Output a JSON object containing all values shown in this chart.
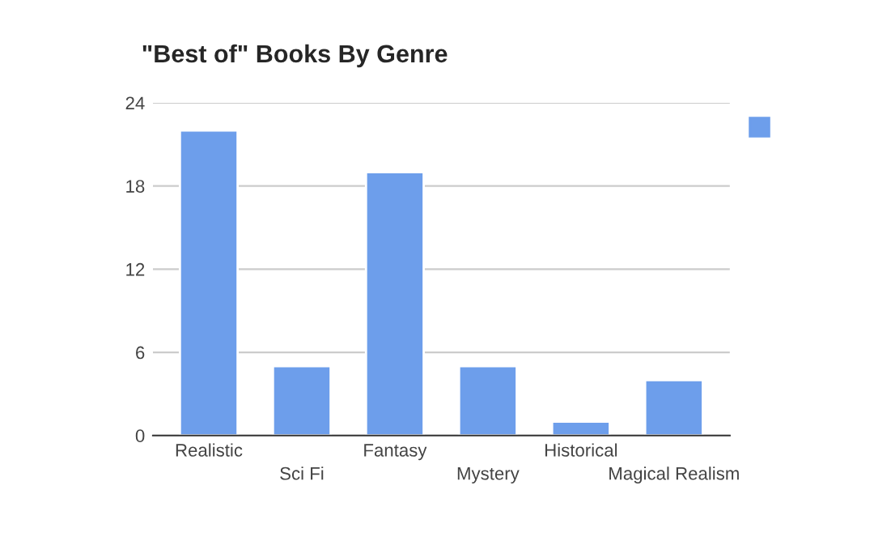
{
  "chart_data": {
    "type": "bar",
    "title": "\"Best of\" Books By Genre",
    "categories": [
      "Realistic",
      "Sci Fi",
      "Fantasy",
      "Mystery",
      "Historical",
      "Magical Realism"
    ],
    "values": [
      22,
      5,
      19,
      5,
      1,
      4
    ],
    "color": "#6d9eeb",
    "ylim": [
      0,
      24
    ],
    "yticks": [
      0,
      6,
      12,
      18,
      24
    ],
    "grid": "y"
  }
}
